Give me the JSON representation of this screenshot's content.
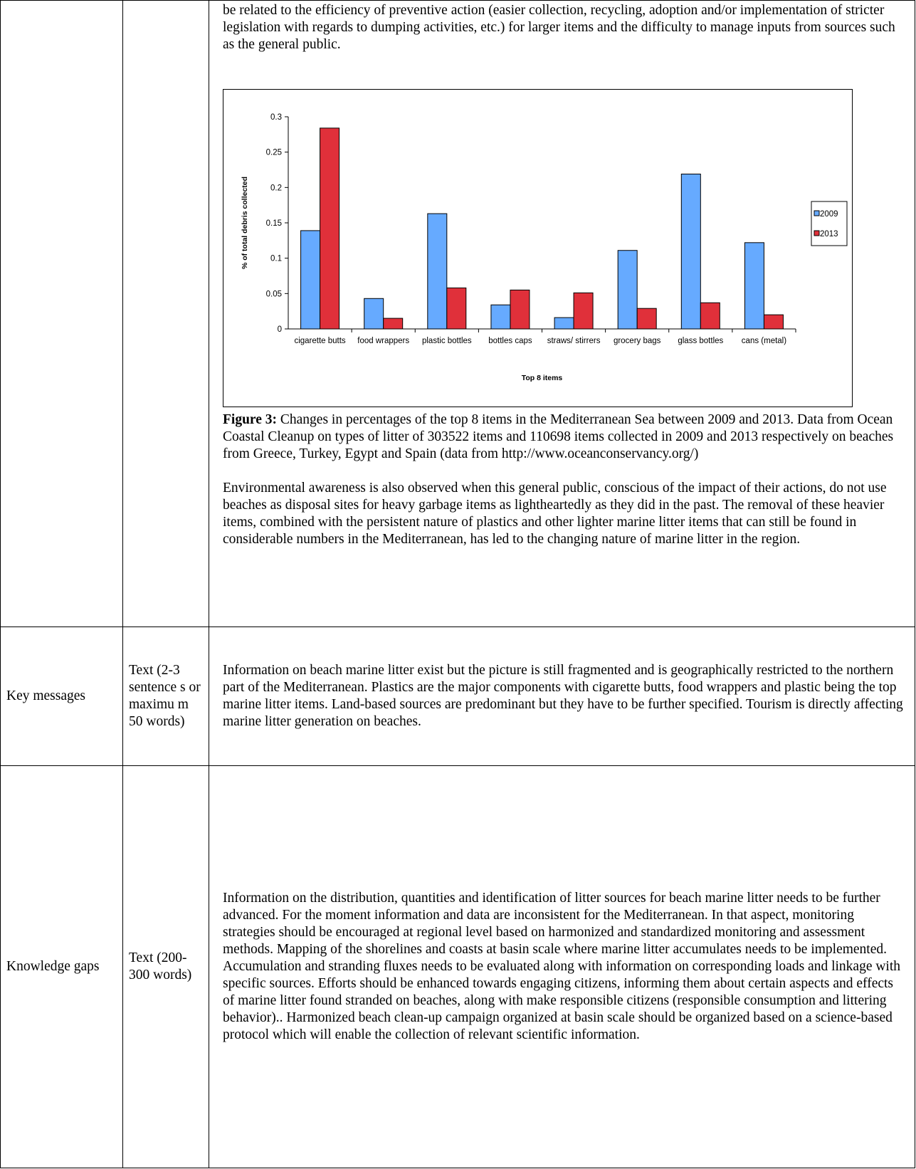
{
  "table": {
    "rows": [
      {
        "intro": "be related to the efficiency of preventive action (easier collection, recycling, adoption and/or implementation of stricter legislation with regards to dumping activities, etc.) for larger items and the difficulty to manage inputs from sources such as the general public.",
        "caption_label": "Figure 3:",
        "caption_text": "Changes in percentages of the top 8 items in the Mediterranean Sea between 2009 and 2013. Data from Ocean Coastal Cleanup on types of litter of 303522 items and 110698 items collected in 2009 and 2013 respectively on beaches from Greece, Turkey, Egypt and Spain (data from http://www.oceanconservancy.org/)",
        "paragraph": "Environmental awareness is also observed when this general public, conscious of the impact of their actions, do not use beaches as disposal sites for heavy garbage items as lightheartedly as they did in the past. The removal of these heavier items, combined with the persistent nature of plastics and other lighter marine litter items that can still be found in considerable numbers in the Mediterranean, has led to the changing nature of marine litter in the region."
      },
      {
        "label": "Key messages",
        "format": "Text (2-3 sentence s or maximu m 50 words)",
        "content": "Information on beach marine litter exist but the picture is still fragmented and is geographically restricted to the northern part of the Mediterranean. Plastics are the major components with cigarette butts, food wrappers and plastic being the top marine litter items. Land-based sources are predominant but they have to be further specified. Tourism is directly affecting marine litter generation on beaches."
      },
      {
        "label": "Knowledge gaps",
        "format": "Text (200- 300 words)",
        "content": "Information on the distribution, quantities and identification of litter sources for beach marine litter needs to be further advanced. For the moment information and data are inconsistent for the Mediterranean. In that aspect, monitoring strategies should be encouraged at regional level based on harmonized and standardized monitoring and assessment methods. Mapping of the shorelines and coasts at basin scale where marine litter accumulates needs to be implemented. Accumulation and stranding fluxes needs to be evaluated along with information on corresponding loads and linkage with specific sources. Efforts should be enhanced towards engaging citizens, informing them about certain aspects and effects of marine litter found stranded on beaches, along with make responsible citizens (responsible consumption and littering behavior).. Harmonized beach clean-up campaign organized at basin scale should be organized based on a science-based protocol which will enable the collection of relevant scientific information."
      }
    ]
  },
  "chart_data": {
    "type": "bar",
    "ylabel": "% of total debris collected",
    "xlabel": "Top 8 items",
    "categories": [
      "cigarette butts",
      "food wrappers",
      "plastic bottles",
      "bottles caps",
      "straws/ stirrers",
      "grocery bags",
      "glass bottles",
      "cans (metal)"
    ],
    "series": [
      {
        "name": "2009",
        "color": "#66aaff",
        "values": [
          0.139,
          0.043,
          0.163,
          0.034,
          0.016,
          0.111,
          0.219,
          0.122
        ]
      },
      {
        "name": "2013",
        "color": "#e0303a",
        "values": [
          0.284,
          0.015,
          0.058,
          0.055,
          0.051,
          0.029,
          0.037,
          0.02
        ]
      }
    ],
    "ylim": [
      0,
      0.3
    ],
    "yticks": [
      0,
      0.05,
      0.1,
      0.15,
      0.2,
      0.25,
      0.3
    ],
    "legend": "right"
  }
}
